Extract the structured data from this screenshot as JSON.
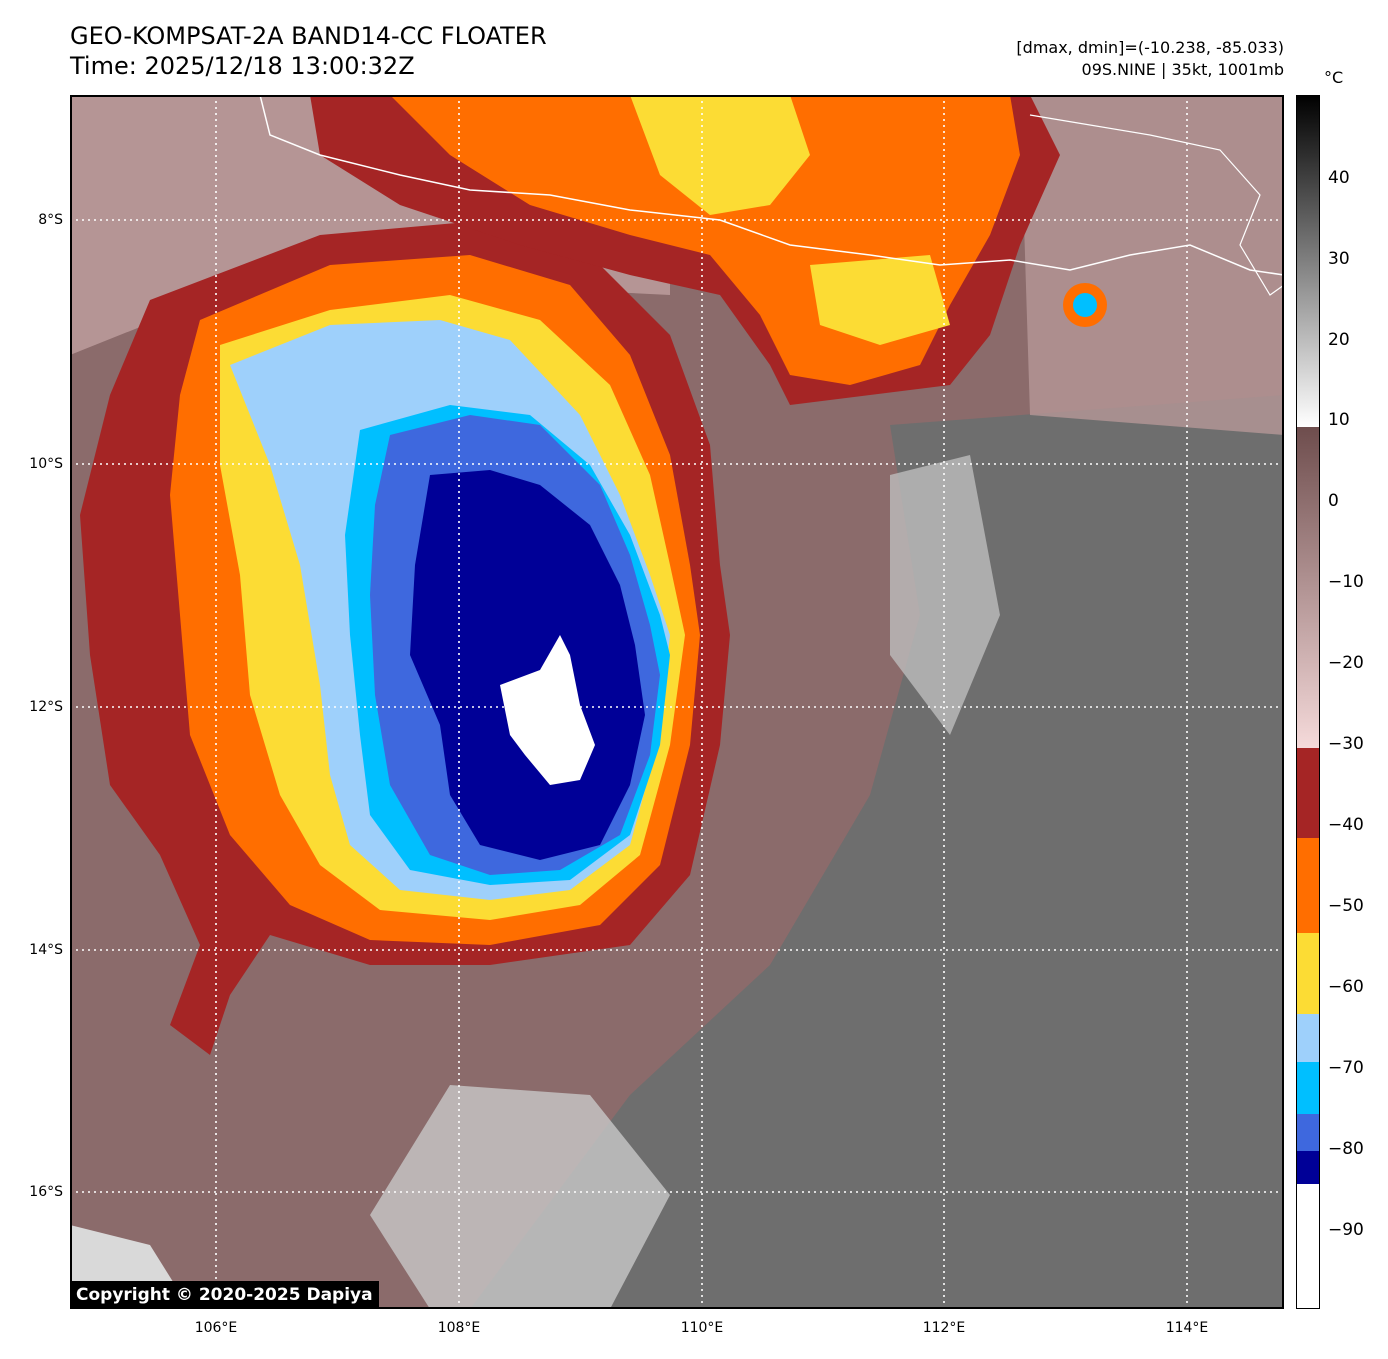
{
  "title": {
    "line1": "GEO-KOMPSAT-2A BAND14-CC FLOATER",
    "line2": "Time: 2025/12/18 13:00:32Z"
  },
  "info": {
    "line1": "[dmax, dmin]=(-10.238, -85.033)",
    "line2": "09S.NINE | 35kt, 1001mb"
  },
  "copyright": "Copyright © 2020-2025 Dapiya",
  "axes": {
    "lat_labels": [
      "8°S",
      "10°S",
      "12°S",
      "14°S",
      "16°S"
    ],
    "lon_labels": [
      "106°E",
      "108°E",
      "110°E",
      "112°E",
      "114°E"
    ]
  },
  "colorbar": {
    "unit": "°C",
    "ticks": [
      "40",
      "30",
      "20",
      "10",
      "0",
      "−10",
      "−20",
      "−30",
      "−40",
      "−50",
      "−60",
      "−70",
      "−80",
      "−90"
    ],
    "bands": [
      {
        "range": "above 10",
        "color": "#2a2a2a"
      },
      {
        "range": "10 to -30",
        "color": "#9a7777"
      },
      {
        "range": "-30 to -40",
        "color": "#a52525"
      },
      {
        "range": "-40 to -50",
        "color": "#ff6e00"
      },
      {
        "range": "-50 to -60",
        "color": "#fcdc34"
      },
      {
        "range": "-60 to -70",
        "color": "#9ed0fb"
      },
      {
        "range": "-70 to -80",
        "color": "#00bfff"
      },
      {
        "range": "-80 to -85",
        "color": "#3e68de"
      },
      {
        "range": "-85 to -90",
        "color": "#000097"
      },
      {
        "range": "below -90",
        "color": "#ffffff"
      }
    ]
  },
  "storm": {
    "name": "09S.NINE",
    "intensity": "35kt",
    "pressure": "1001mb"
  }
}
